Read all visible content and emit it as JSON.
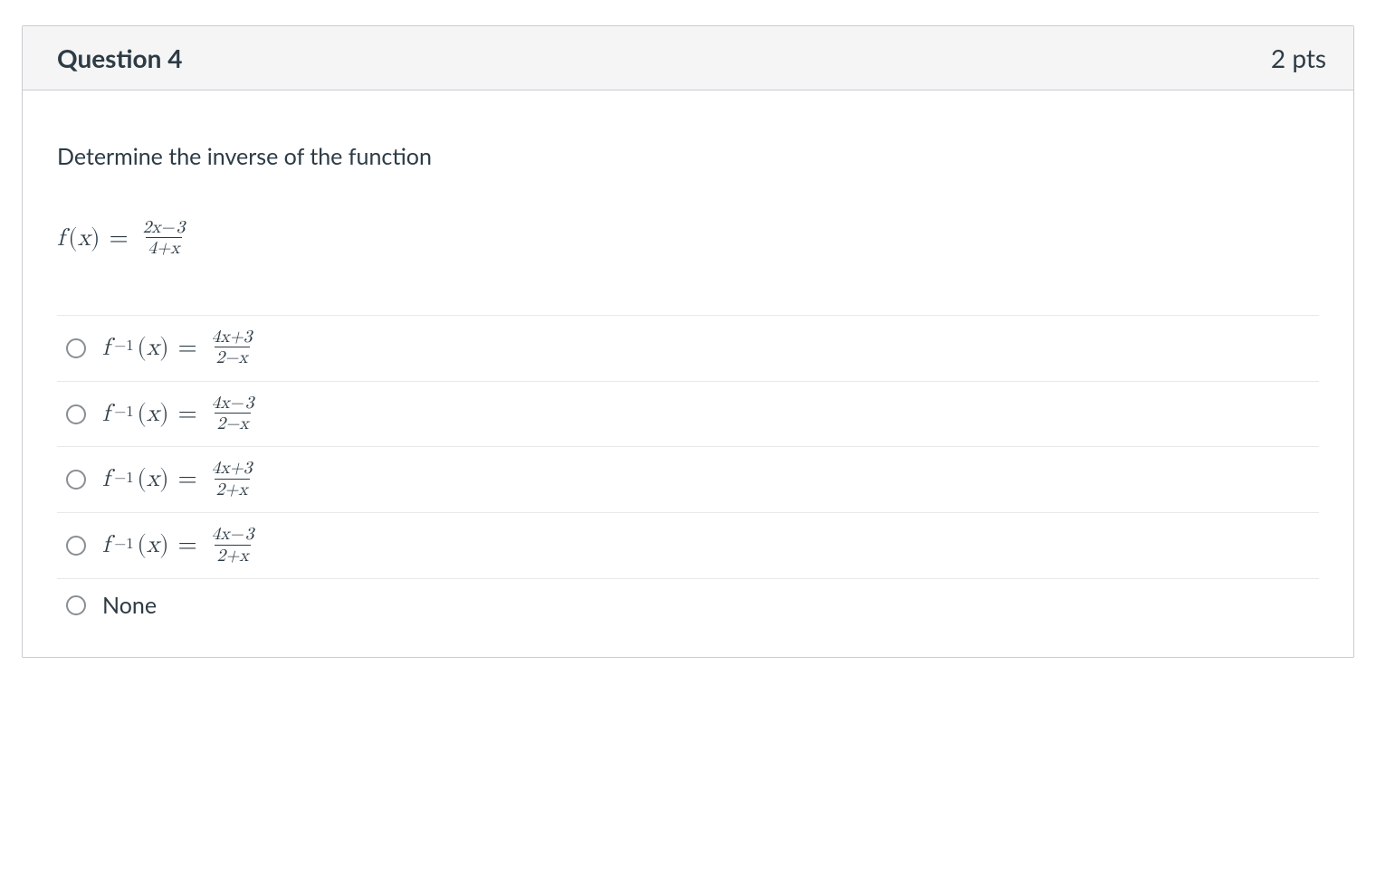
{
  "colors": {
    "border": "#c7cdd1",
    "header_bg": "#f5f5f5",
    "text": "#2d3b45",
    "divider": "#e8e8e8",
    "radio_border": "#888f94",
    "page_bg": "#ffffff"
  },
  "header": {
    "title": "Question 4",
    "points": "2 pts"
  },
  "prompt": "Determine the inverse of the function",
  "function": {
    "lhs_fn": "f",
    "lhs_arg": "x",
    "frac_num": "2x− 3",
    "frac_den": "4+x"
  },
  "answers": [
    {
      "type": "math",
      "lhs_fn": "f",
      "lhs_sup": "−1",
      "lhs_arg": "x",
      "frac_num": "4x+3",
      "frac_den": "2−x"
    },
    {
      "type": "math",
      "lhs_fn": "f",
      "lhs_sup": "−1",
      "lhs_arg": "x",
      "frac_num": "4x− 3",
      "frac_den": "2−x"
    },
    {
      "type": "math",
      "lhs_fn": "f",
      "lhs_sup": "−1",
      "lhs_arg": "x",
      "frac_num": "4x+3",
      "frac_den": "2+x"
    },
    {
      "type": "math",
      "lhs_fn": "f",
      "lhs_sup": "−1",
      "lhs_arg": "x",
      "frac_num": "4x− 3",
      "frac_den": "2+x"
    },
    {
      "type": "plain",
      "label": "None"
    }
  ]
}
